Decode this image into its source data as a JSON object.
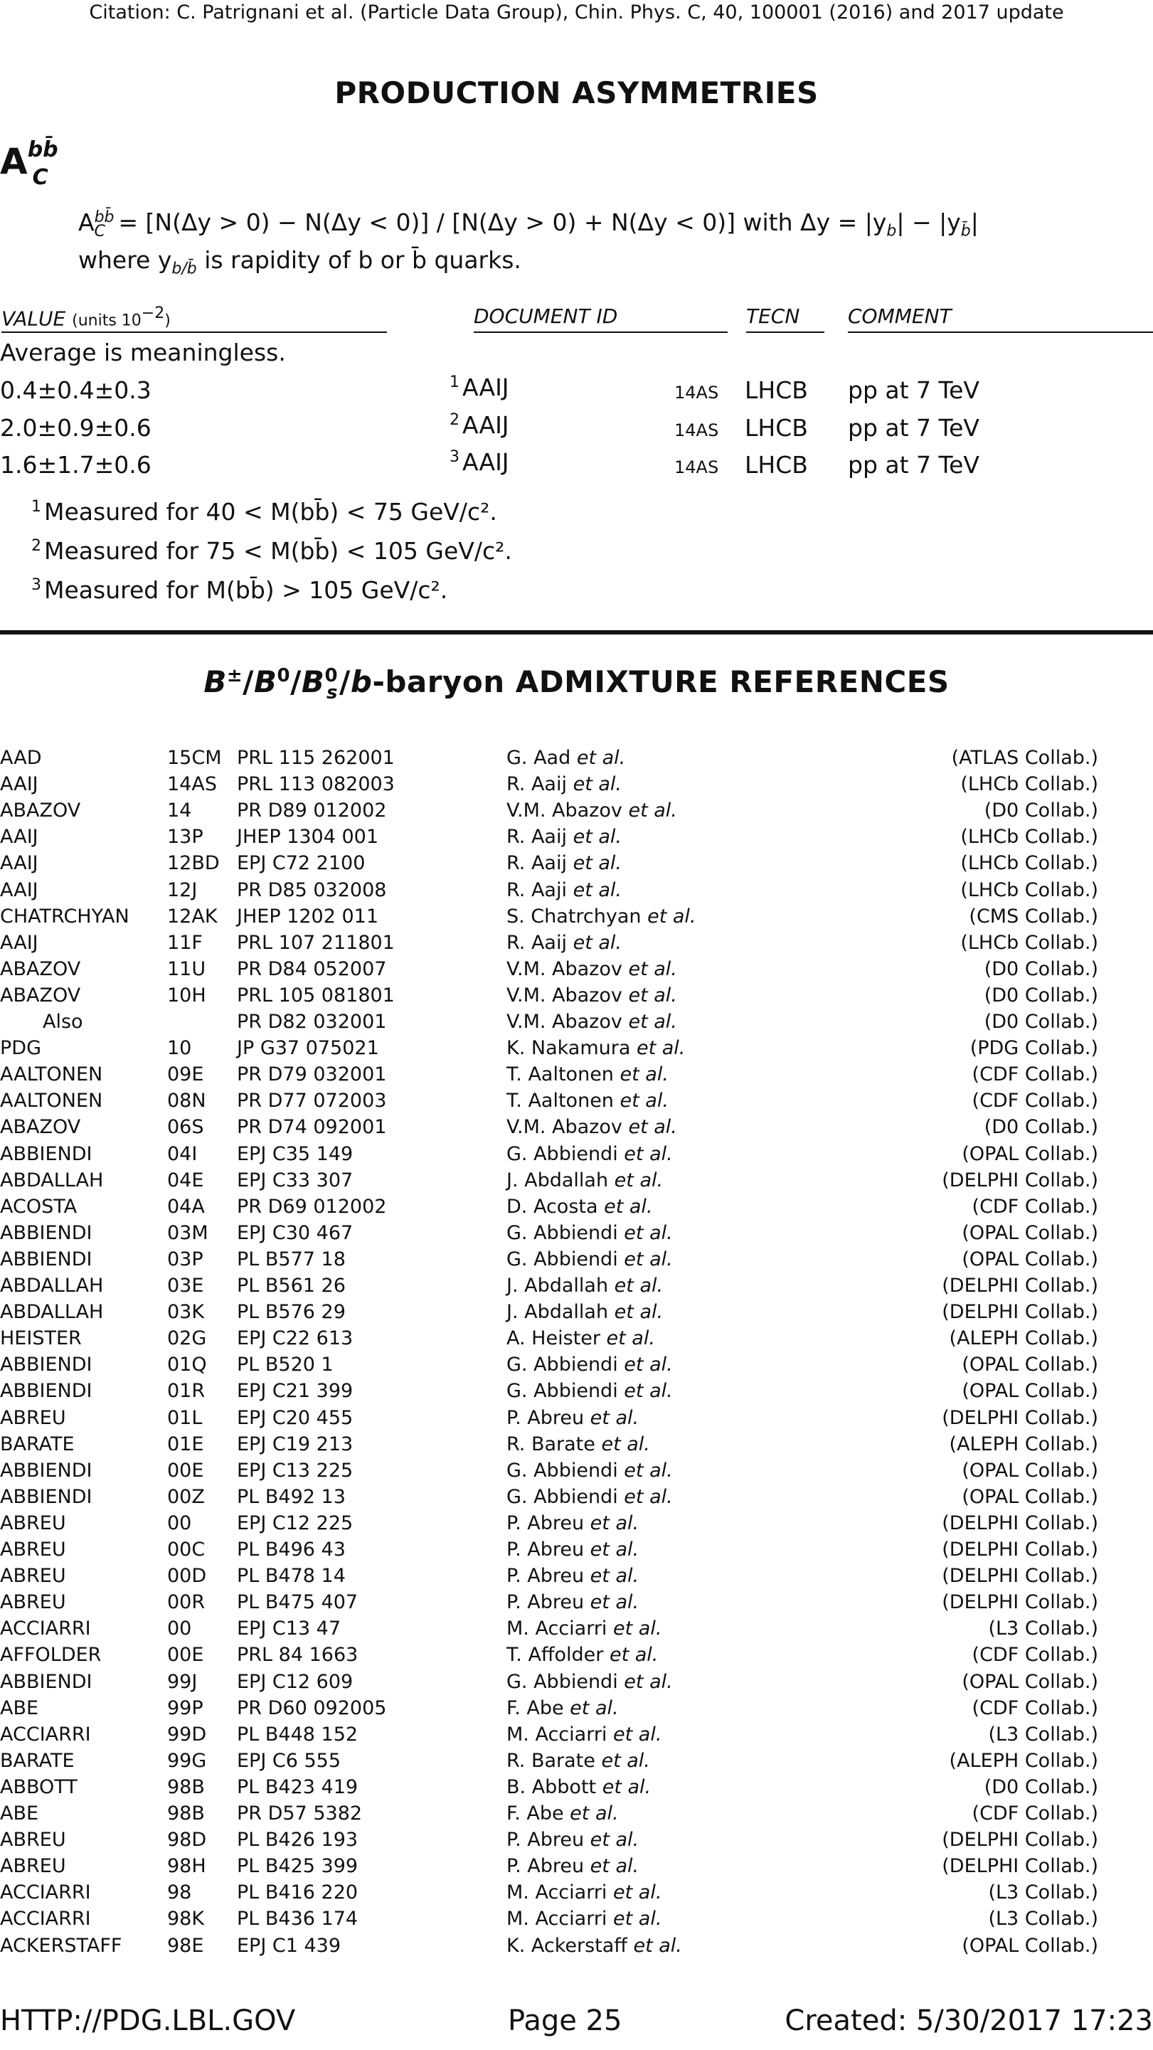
{
  "citation": "Citation: C. Patrignani et al. (Particle Data Group), Chin. Phys. C, 40, 100001 (2016) and 2017 update",
  "section1": {
    "title": "PRODUCTION ASYMMETRIES",
    "symbol_base": "A",
    "symbol_sup": "bb̄",
    "symbol_sub": "C",
    "definition_line1": "A",
    "definition_line1_rest": " = [N(Δy > 0) − N(Δy < 0)] / [N(Δy > 0) + N(Δy < 0)] with Δy = |y",
    "definition_line1_mid": "| − |y",
    "definition_line1_end": "|",
    "def_sup": "bb̄",
    "def_sub": "C",
    "def_sub_b": "b",
    "def_sub_bbar": "b̄",
    "definition_line2_pre": "where y",
    "definition_line2_sub": "b/b̄",
    "definition_line2_post": " is rapidity of b or b̄ quarks."
  },
  "table": {
    "col_value": "VALUE",
    "col_value_units": "(units 10",
    "col_value_exp": "−2",
    "col_value_close": ")",
    "col_doc": "DOCUMENT ID",
    "col_tecn": "TECN",
    "col_comment": "COMMENT",
    "average_note": "Average is meaningless.",
    "rows": [
      {
        "value": "0.4±0.4±0.3",
        "fn": "1",
        "doc": "AAIJ",
        "year": "14AS",
        "tecn": "LHCB",
        "comment": "pp at 7 TeV"
      },
      {
        "value": "2.0±0.9±0.6",
        "fn": "2",
        "doc": "AAIJ",
        "year": "14AS",
        "tecn": "LHCB",
        "comment": "pp at 7 TeV"
      },
      {
        "value": "1.6±1.7±0.6",
        "fn": "3",
        "doc": "AAIJ",
        "year": "14AS",
        "tecn": "LHCB",
        "comment": "pp at 7 TeV"
      }
    ],
    "footnotes": [
      {
        "mark": "1",
        "text": "Measured for 40 < M(bb̄) < 75 GeV/c²."
      },
      {
        "mark": "2",
        "text": "Measured for 75 < M(bb̄) < 105 GeV/c²."
      },
      {
        "mark": "3",
        "text": "Measured for M(bb̄) > 105 GeV/c²."
      }
    ]
  },
  "section2": {
    "title": "B±/B0/B0s/b-baryon ADMIXTURE REFERENCES",
    "title_parts": {
      "b1": "B",
      "pm": "±",
      "slash1": "/",
      "b2": "B",
      "zero1": "0",
      "slash2": "/",
      "b3": "B",
      "zero2": "0",
      "s": "s",
      "slash3": "/",
      "bb": "b",
      "rest": "-baryon ADMIXTURE REFERENCES"
    },
    "references": [
      {
        "name": "AAD",
        "code": "15CM",
        "journal": "PRL 115 262001",
        "author": "G. Aad",
        "collab": "(ATLAS Collab.)"
      },
      {
        "name": "AAIJ",
        "code": "14AS",
        "journal": "PRL 113 082003",
        "author": "R. Aaij",
        "collab": "(LHCb Collab.)"
      },
      {
        "name": "ABAZOV",
        "code": "14",
        "journal": "PR D89 012002",
        "author": "V.M. Abazov",
        "collab": "(D0 Collab.)"
      },
      {
        "name": "AAIJ",
        "code": "13P",
        "journal": "JHEP 1304 001",
        "author": "R. Aaij",
        "collab": "(LHCb Collab.)"
      },
      {
        "name": "AAIJ",
        "code": "12BD",
        "journal": "EPJ C72 2100",
        "author": "R. Aaij",
        "collab": "(LHCb Collab.)"
      },
      {
        "name": "AAIJ",
        "code": "12J",
        "journal": "PR D85 032008",
        "author": "R. Aaji",
        "collab": "(LHCb Collab.)"
      },
      {
        "name": "CHATRCHYAN",
        "code": "12AK",
        "journal": "JHEP 1202 011",
        "author": "S. Chatrchyan",
        "collab": "(CMS Collab.)"
      },
      {
        "name": "AAIJ",
        "code": "11F",
        "journal": "PRL 107 211801",
        "author": "R. Aaij",
        "collab": "(LHCb Collab.)"
      },
      {
        "name": "ABAZOV",
        "code": "11U",
        "journal": "PR D84 052007",
        "author": "V.M. Abazov",
        "collab": "(D0 Collab.)"
      },
      {
        "name": "ABAZOV",
        "code": "10H",
        "journal": "PRL 105 081801",
        "author": "V.M. Abazov",
        "collab": "(D0 Collab.)"
      },
      {
        "name": "Also",
        "code": "",
        "journal": "PR D82 032001",
        "author": "V.M. Abazov",
        "collab": "(D0 Collab.)",
        "also": true
      },
      {
        "name": "PDG",
        "code": "10",
        "journal": "JP G37 075021",
        "author": "K. Nakamura",
        "collab": "(PDG Collab.)"
      },
      {
        "name": "AALTONEN",
        "code": "09E",
        "journal": "PR D79 032001",
        "author": "T. Aaltonen",
        "collab": "(CDF Collab.)"
      },
      {
        "name": "AALTONEN",
        "code": "08N",
        "journal": "PR D77 072003",
        "author": "T. Aaltonen",
        "collab": "(CDF Collab.)"
      },
      {
        "name": "ABAZOV",
        "code": "06S",
        "journal": "PR D74 092001",
        "author": "V.M. Abazov",
        "collab": "(D0 Collab.)"
      },
      {
        "name": "ABBIENDI",
        "code": "04I",
        "journal": "EPJ C35 149",
        "author": "G. Abbiendi",
        "collab": "(OPAL Collab.)"
      },
      {
        "name": "ABDALLAH",
        "code": "04E",
        "journal": "EPJ C33 307",
        "author": "J. Abdallah",
        "collab": "(DELPHI Collab.)"
      },
      {
        "name": "ACOSTA",
        "code": "04A",
        "journal": "PR D69 012002",
        "author": "D. Acosta",
        "collab": "(CDF Collab.)"
      },
      {
        "name": "ABBIENDI",
        "code": "03M",
        "journal": "EPJ C30 467",
        "author": "G. Abbiendi",
        "collab": "(OPAL Collab.)"
      },
      {
        "name": "ABBIENDI",
        "code": "03P",
        "journal": "PL B577 18",
        "author": "G. Abbiendi",
        "collab": "(OPAL Collab.)"
      },
      {
        "name": "ABDALLAH",
        "code": "03E",
        "journal": "PL B561 26",
        "author": "J. Abdallah",
        "collab": "(DELPHI Collab.)"
      },
      {
        "name": "ABDALLAH",
        "code": "03K",
        "journal": "PL B576 29",
        "author": "J. Abdallah",
        "collab": "(DELPHI Collab.)"
      },
      {
        "name": "HEISTER",
        "code": "02G",
        "journal": "EPJ C22 613",
        "author": "A. Heister",
        "collab": "(ALEPH Collab.)"
      },
      {
        "name": "ABBIENDI",
        "code": "01Q",
        "journal": "PL B520 1",
        "author": "G. Abbiendi",
        "collab": "(OPAL Collab.)"
      },
      {
        "name": "ABBIENDI",
        "code": "01R",
        "journal": "EPJ C21 399",
        "author": "G. Abbiendi",
        "collab": "(OPAL Collab.)"
      },
      {
        "name": "ABREU",
        "code": "01L",
        "journal": "EPJ C20 455",
        "author": "P. Abreu",
        "collab": "(DELPHI Collab.)"
      },
      {
        "name": "BARATE",
        "code": "01E",
        "journal": "EPJ C19 213",
        "author": "R. Barate",
        "collab": "(ALEPH Collab.)"
      },
      {
        "name": "ABBIENDI",
        "code": "00E",
        "journal": "EPJ C13 225",
        "author": "G. Abbiendi",
        "collab": "(OPAL Collab.)"
      },
      {
        "name": "ABBIENDI",
        "code": "00Z",
        "journal": "PL B492 13",
        "author": "G. Abbiendi",
        "collab": "(OPAL Collab.)"
      },
      {
        "name": "ABREU",
        "code": "00",
        "journal": "EPJ C12 225",
        "author": "P. Abreu",
        "collab": "(DELPHI Collab.)"
      },
      {
        "name": "ABREU",
        "code": "00C",
        "journal": "PL B496 43",
        "author": "P. Abreu",
        "collab": "(DELPHI Collab.)"
      },
      {
        "name": "ABREU",
        "code": "00D",
        "journal": "PL B478 14",
        "author": "P. Abreu",
        "collab": "(DELPHI Collab.)"
      },
      {
        "name": "ABREU",
        "code": "00R",
        "journal": "PL B475 407",
        "author": "P. Abreu",
        "collab": "(DELPHI Collab.)"
      },
      {
        "name": "ACCIARRI",
        "code": "00",
        "journal": "EPJ C13 47",
        "author": "M. Acciarri",
        "collab": "(L3 Collab.)"
      },
      {
        "name": "AFFOLDER",
        "code": "00E",
        "journal": "PRL 84 1663",
        "author": "T. Affolder",
        "collab": "(CDF Collab.)"
      },
      {
        "name": "ABBIENDI",
        "code": "99J",
        "journal": "EPJ C12 609",
        "author": "G. Abbiendi",
        "collab": "(OPAL Collab.)"
      },
      {
        "name": "ABE",
        "code": "99P",
        "journal": "PR D60 092005",
        "author": "F. Abe",
        "collab": "(CDF Collab.)"
      },
      {
        "name": "ACCIARRI",
        "code": "99D",
        "journal": "PL B448 152",
        "author": "M. Acciarri",
        "collab": "(L3 Collab.)"
      },
      {
        "name": "BARATE",
        "code": "99G",
        "journal": "EPJ C6 555",
        "author": "R. Barate",
        "collab": "(ALEPH Collab.)"
      },
      {
        "name": "ABBOTT",
        "code": "98B",
        "journal": "PL B423 419",
        "author": "B. Abbott",
        "collab": "(D0 Collab.)"
      },
      {
        "name": "ABE",
        "code": "98B",
        "journal": "PR D57 5382",
        "author": "F. Abe",
        "collab": "(CDF Collab.)"
      },
      {
        "name": "ABREU",
        "code": "98D",
        "journal": "PL B426 193",
        "author": "P. Abreu",
        "collab": "(DELPHI Collab.)"
      },
      {
        "name": "ABREU",
        "code": "98H",
        "journal": "PL B425 399",
        "author": "P. Abreu",
        "collab": "(DELPHI Collab.)"
      },
      {
        "name": "ACCIARRI",
        "code": "98",
        "journal": "PL B416 220",
        "author": "M. Acciarri",
        "collab": "(L3 Collab.)"
      },
      {
        "name": "ACCIARRI",
        "code": "98K",
        "journal": "PL B436 174",
        "author": "M. Acciarri",
        "collab": "(L3 Collab.)"
      },
      {
        "name": "ACKERSTAFF",
        "code": "98E",
        "journal": "EPJ C1 439",
        "author": "K. Ackerstaff",
        "collab": "(OPAL Collab.)"
      }
    ],
    "et_al": "et al."
  },
  "footer": {
    "url": "HTTP://PDG.LBL.GOV",
    "page": "Page 25",
    "created": "Created: 5/30/2017 17:23"
  }
}
